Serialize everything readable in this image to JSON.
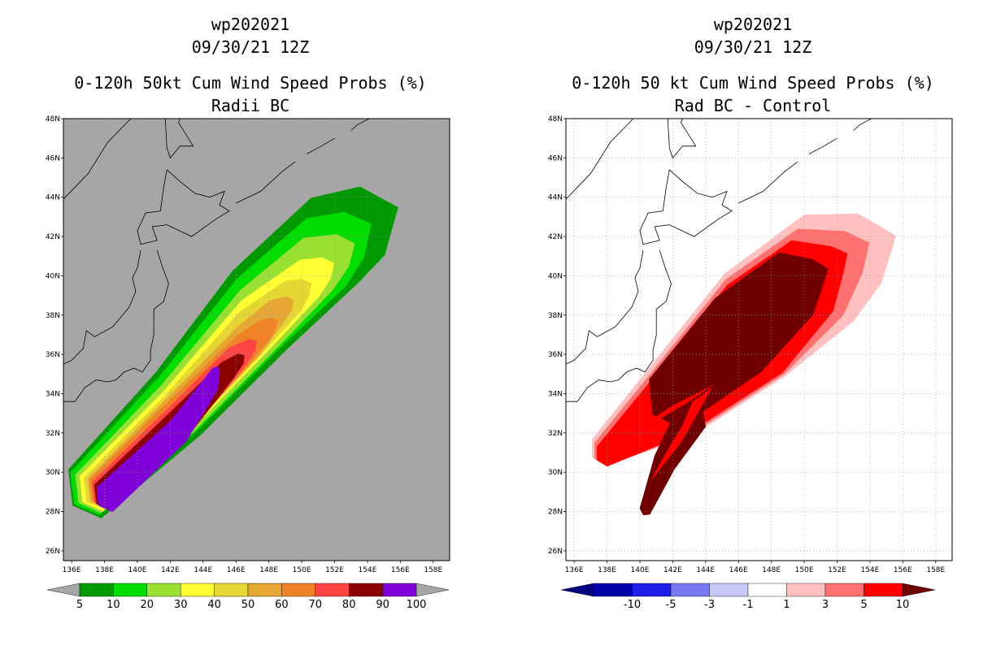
{
  "chart_data": [
    {
      "type": "heatmap",
      "panel": "left",
      "storm": "wp202021",
      "datetime": "09/30/21 12Z",
      "title": "0-120h 50kt Cum Wind Speed Probs (%)",
      "subtitle": "Radii BC",
      "xlim": [
        135.5,
        159
      ],
      "ylim": [
        25.5,
        48
      ],
      "x_ticks": [
        "136E",
        "138E",
        "140E",
        "142E",
        "144E",
        "146E",
        "148E",
        "150E",
        "152E",
        "154E",
        "156E",
        "158E"
      ],
      "y_ticks": [
        "26N",
        "28N",
        "30N",
        "32N",
        "34N",
        "36N",
        "38N",
        "40N",
        "42N",
        "44N",
        "46N",
        "48N"
      ],
      "background_color": "#a6a6a6",
      "colorbar": {
        "labels": [
          "5",
          "10",
          "20",
          "30",
          "40",
          "50",
          "60",
          "70",
          "80",
          "90",
          "100"
        ],
        "colors": [
          "#009900",
          "#00dd00",
          "#99e033",
          "#ffff33",
          "#e6d633",
          "#e6a833",
          "#f08228",
          "#ff4444",
          "#8b0000",
          "#8000d8"
        ],
        "end_arrow_color": "#a6a6a6"
      },
      "levels": [
        {
          "prob": 5,
          "color": "#009900",
          "center": [
            [
              136.8,
              28.9
            ],
            [
              142.5,
              33.5
            ],
            [
              147.5,
              38.3
            ],
            [
              152,
              41.8
            ],
            [
              154.3,
              42.8
            ]
          ],
          "hw": [
            1.6,
            2.1,
            2.6,
            2.6,
            1.9
          ]
        },
        {
          "prob": 10,
          "color": "#00dd00",
          "center": [
            [
              136.8,
              28.9
            ],
            [
              142.5,
              33.5
            ],
            [
              147.5,
              38.2
            ],
            [
              151.5,
              41.2
            ],
            [
              153.2,
              42.1
            ]
          ],
          "hw": [
            1.4,
            1.8,
            2.2,
            2.1,
            1.3
          ]
        },
        {
          "prob": 20,
          "color": "#99e033",
          "center": [
            [
              137,
              28.9
            ],
            [
              142.5,
              33.3
            ],
            [
              147.5,
              37.9
            ],
            [
              151,
              40.6
            ],
            [
              152.5,
              41.3
            ]
          ],
          "hw": [
            1.25,
            1.55,
            1.85,
            1.6,
            0.9
          ]
        },
        {
          "prob": 30,
          "color": "#ffff33",
          "center": [
            [
              137.2,
              28.9
            ],
            [
              142.5,
              33.2
            ],
            [
              147.3,
              37.6
            ],
            [
              150.5,
              39.9
            ],
            [
              151.5,
              40.4
            ]
          ],
          "hw": [
            1.15,
            1.3,
            1.5,
            1.1,
            0.6
          ]
        },
        {
          "prob": 40,
          "color": "#e6d633",
          "center": [
            [
              137.4,
              28.9
            ],
            [
              142.5,
              33.1
            ],
            [
              147,
              37.2
            ],
            [
              149.5,
              39
            ],
            [
              150.2,
              39.4
            ]
          ],
          "hw": [
            1.05,
            1.15,
            1.25,
            0.9,
            0.5
          ]
        },
        {
          "prob": 50,
          "color": "#e6a833",
          "center": [
            [
              137.6,
              28.9
            ],
            [
              142.5,
              33
            ],
            [
              146.8,
              36.7
            ],
            [
              148.5,
              38.2
            ],
            [
              149.2,
              38.6
            ]
          ],
          "hw": [
            1,
            1.05,
            1,
            0.7,
            0.4
          ]
        },
        {
          "prob": 60,
          "color": "#f08228",
          "center": [
            [
              137.7,
              28.9
            ],
            [
              142.5,
              32.9
            ],
            [
              146.5,
              36.3
            ],
            [
              147.8,
              37.3
            ],
            [
              148.3,
              37.6
            ]
          ],
          "hw": [
            0.95,
            0.95,
            0.8,
            0.55,
            0.3
          ]
        },
        {
          "prob": 70,
          "color": "#ff4444",
          "center": [
            [
              137.8,
              28.8
            ],
            [
              142.6,
              32.7
            ],
            [
              146,
              35.8
            ],
            [
              147,
              36.5
            ]
          ],
          "hw": [
            0.9,
            0.9,
            0.7,
            0.35
          ]
        },
        {
          "prob": 80,
          "color": "#8b0000",
          "center": [
            [
              137.9,
              28.7
            ],
            [
              142.6,
              32.5
            ],
            [
              145.5,
              35.2
            ],
            [
              146.3,
              35.8
            ]
          ],
          "hw": [
            0.85,
            0.82,
            0.55,
            0.3
          ]
        },
        {
          "prob": 90,
          "color": "#8000d8",
          "center": [
            [
              138,
              28.6
            ],
            [
              142.5,
              32.1
            ],
            [
              144.5,
              34.5
            ],
            [
              144.8,
              35.2
            ]
          ],
          "hw": [
            0.8,
            0.72,
            0.5,
            0.25
          ]
        }
      ]
    },
    {
      "type": "heatmap",
      "panel": "right",
      "storm": "wp202021",
      "datetime": "09/30/21 12Z",
      "title": "0-120h 50 kt Cum Wind Speed Probs (%)",
      "subtitle": "Rad BC - Control",
      "xlim": [
        135.5,
        159
      ],
      "ylim": [
        25.5,
        48
      ],
      "x_ticks": [
        "136E",
        "138E",
        "140E",
        "142E",
        "144E",
        "146E",
        "148E",
        "150E",
        "152E",
        "154E",
        "156E",
        "158E"
      ],
      "y_ticks": [
        "26N",
        "28N",
        "30N",
        "32N",
        "34N",
        "36N",
        "38N",
        "40N",
        "42N",
        "44N",
        "46N",
        "48N"
      ],
      "background_color": "#ffffff",
      "colorbar": {
        "labels": [
          "-10",
          "-5",
          "-3",
          "-1",
          "1",
          "3",
          "5",
          "10"
        ],
        "colors": [
          "#0000aa",
          "#1e1ee6",
          "#7878f0",
          "#c8c8f8",
          "#ffffff",
          "#ffc0c0",
          "#ff7070",
          "#ff0000"
        ],
        "left_arrow_color": "#000080",
        "right_arrow_color": "#700000"
      },
      "levels": [
        {
          "diff": 1,
          "color": "#ffc0c0",
          "center": [
            [
              137.5,
              31
            ],
            [
              142,
              33.7
            ],
            [
              147,
              37.5
            ],
            [
              151.5,
              40.4
            ],
            [
              154,
              41.4
            ]
          ],
          "hw": [
            0.8,
            2.2,
            3.2,
            3.1,
            1.9
          ]
        },
        {
          "diff": 3,
          "color": "#ff7070",
          "center": [
            [
              137.6,
              30.9
            ],
            [
              142,
              33.6
            ],
            [
              147,
              37.4
            ],
            [
              151,
              40.2
            ],
            [
              153,
              41.2
            ]
          ],
          "hw": [
            0.7,
            2,
            3,
            2.6,
            1.2
          ]
        },
        {
          "diff": 5,
          "color": "#ff0000",
          "center": [
            [
              137.7,
              30.8
            ],
            [
              142,
              33.5
            ],
            [
              147,
              37.3
            ],
            [
              150.5,
              40
            ],
            [
              152,
              40.8
            ]
          ],
          "hw": [
            0.6,
            1.8,
            2.8,
            2.2,
            0.8
          ]
        },
        {
          "diff": 10,
          "color": "#700000",
          "center": [
            [
              141.5,
              33.5
            ],
            [
              146,
              37
            ],
            [
              149.5,
              39.6
            ],
            [
              150.8,
              40.1
            ]
          ],
          "hw": [
            1.55,
            2.35,
            1.9,
            0.8
          ]
        },
        {
          "diff": 10,
          "color": "#700000",
          "center": [
            [
              140.3,
              28
            ],
            [
              141.5,
              30.5
            ],
            [
              143.2,
              32.9
            ]
          ],
          "hw": [
            0.35,
            0.7,
            1
          ]
        }
      ],
      "notches": [
        {
          "color": "#ff0000",
          "points": [
            [
              140.6,
              29.5
            ],
            [
              142.5,
              31.5
            ],
            [
              144.4,
              34.3
            ],
            [
              143.2,
              33.6
            ],
            [
              142.6,
              32.4
            ],
            [
              141.6,
              31
            ]
          ]
        },
        {
          "color": "#ff0000",
          "points": [
            [
              138.2,
              30.8
            ],
            [
              140.8,
              32.5
            ],
            [
              143,
              33.6
            ],
            [
              144.6,
              34.5
            ],
            [
              142,
              33.4
            ],
            [
              140,
              32.3
            ]
          ]
        }
      ]
    }
  ]
}
